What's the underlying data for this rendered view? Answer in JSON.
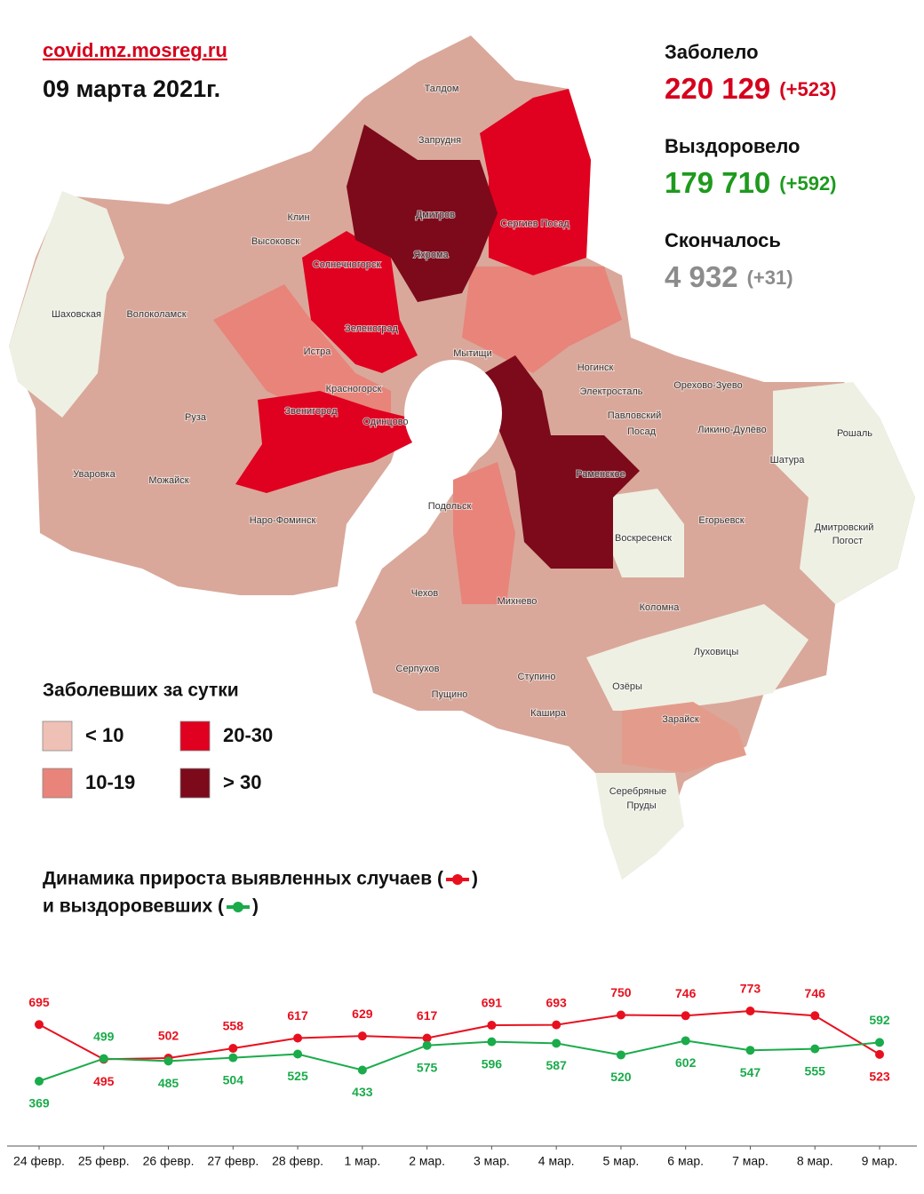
{
  "header": {
    "site": "covid.mz.mosreg.ru",
    "date": "09 марта 2021г."
  },
  "stats": [
    {
      "label": "Заболело",
      "value": "220 129",
      "delta": "(+523)",
      "color": "#d6001c"
    },
    {
      "label": "Выздоровело",
      "value": "179 710",
      "delta": "(+592)",
      "color": "#1e9a1e"
    },
    {
      "label": "Скончалось",
      "value": "4 932",
      "delta": "(+31)",
      "color": "#8c8c8c"
    }
  ],
  "legend": {
    "title": "Заболевших за сутки",
    "items": [
      {
        "label": "< 10",
        "color": "#efc0b6"
      },
      {
        "label": "20-30",
        "color": "#e0001f"
      },
      {
        "label": "10-19",
        "color": "#e8847a"
      },
      {
        "label": "> 30",
        "color": "#7c0a1b"
      }
    ]
  },
  "map_labels": [
    "Талдом",
    "Запрудня",
    "Клин",
    "Высоковск",
    "Дмитров",
    "Яхрома",
    "Сергиев Посад",
    "Солнечногорск",
    "Шаховская",
    "Волоколамск",
    "Зеленоград",
    "Истра",
    "Мытищи",
    "Красногорск",
    "Ногинск",
    "Электросталь",
    "Орехово-Зуево",
    "Павловский",
    "Посад",
    "Звенигород",
    "Одинцово",
    "Руза",
    "Ликино-Дулёво",
    "Рошаль",
    "Шатура",
    "Уваровка",
    "Можайск",
    "Раменское",
    "Наро-Фоминск",
    "Подольск",
    "Воскресенск",
    "Егорьевск",
    "Дмитровский",
    "Погост",
    "Чехов",
    "Михнево",
    "Коломна",
    "Серпухов",
    "Луховицы",
    "Ступино",
    "Пущино",
    "Озёры",
    "Кашира",
    "Зарайск",
    "Серебряные",
    "Пруды"
  ],
  "chart_data": {
    "type": "line",
    "title_line1": "Динамика прироста выявленных случаев (",
    "title_line2": "и выздоровевших (",
    "title_close": ")",
    "categories": [
      "24 февр.",
      "25 февр.",
      "26 февр.",
      "27 февр.",
      "28 февр.",
      "1 мар.",
      "2 мар.",
      "3 мар.",
      "4 мар.",
      "5 мар.",
      "6 мар.",
      "7 мар.",
      "8 мар.",
      "9 мар."
    ],
    "series": [
      {
        "color": "#e8101e",
        "values": [
          695,
          495,
          502,
          558,
          617,
          629,
          617,
          691,
          693,
          750,
          746,
          773,
          746,
          523
        ]
      },
      {
        "color": "#1aab4a",
        "values": [
          369,
          499,
          485,
          504,
          525,
          433,
          575,
          596,
          587,
          520,
          602,
          547,
          555,
          592
        ]
      }
    ]
  }
}
